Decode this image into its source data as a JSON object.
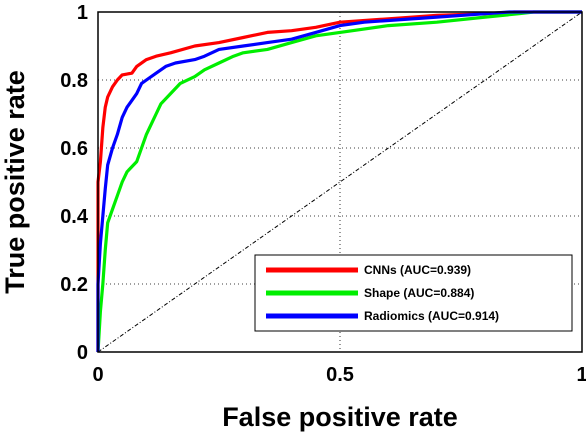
{
  "chart_data": {
    "type": "line",
    "xlabel": "False positive rate",
    "ylabel": "True positive rate",
    "xlim": [
      0,
      1
    ],
    "ylim": [
      0,
      1
    ],
    "grid": true,
    "grid_style": "dotted",
    "legend_position": "bottom-right",
    "x_ticks": [
      {
        "value": 0,
        "label": "0"
      },
      {
        "value": 0.5,
        "label": "0.5"
      },
      {
        "value": 1,
        "label": "1"
      }
    ],
    "y_ticks": [
      {
        "value": 0,
        "label": "0"
      },
      {
        "value": 0.2,
        "label": "0.2"
      },
      {
        "value": 0.4,
        "label": "0.4"
      },
      {
        "value": 0.6,
        "label": "0.6"
      },
      {
        "value": 0.8,
        "label": "0.8"
      },
      {
        "value": 1,
        "label": "1"
      }
    ],
    "series": [
      {
        "name": "CNNs (AUC=0.939)",
        "color": "#ff0000",
        "points": [
          [
            0,
            0
          ],
          [
            0,
            0.5
          ],
          [
            0.005,
            0.56
          ],
          [
            0.01,
            0.66
          ],
          [
            0.015,
            0.72
          ],
          [
            0.02,
            0.75
          ],
          [
            0.03,
            0.78
          ],
          [
            0.04,
            0.8
          ],
          [
            0.05,
            0.815
          ],
          [
            0.07,
            0.82
          ],
          [
            0.08,
            0.84
          ],
          [
            0.1,
            0.86
          ],
          [
            0.12,
            0.87
          ],
          [
            0.15,
            0.88
          ],
          [
            0.2,
            0.9
          ],
          [
            0.25,
            0.91
          ],
          [
            0.3,
            0.925
          ],
          [
            0.35,
            0.94
          ],
          [
            0.4,
            0.945
          ],
          [
            0.45,
            0.955
          ],
          [
            0.5,
            0.97
          ],
          [
            0.6,
            0.98
          ],
          [
            0.7,
            0.99
          ],
          [
            0.8,
            0.995
          ],
          [
            0.86,
            1.0
          ],
          [
            1,
            1
          ]
        ]
      },
      {
        "name": "Shape (AUC=0.884)",
        "color": "#00ee00",
        "points": [
          [
            0,
            0
          ],
          [
            0.005,
            0.12
          ],
          [
            0.01,
            0.2
          ],
          [
            0.015,
            0.3
          ],
          [
            0.02,
            0.38
          ],
          [
            0.03,
            0.42
          ],
          [
            0.04,
            0.46
          ],
          [
            0.05,
            0.5
          ],
          [
            0.06,
            0.53
          ],
          [
            0.08,
            0.56
          ],
          [
            0.09,
            0.6
          ],
          [
            0.1,
            0.64
          ],
          [
            0.11,
            0.67
          ],
          [
            0.12,
            0.7
          ],
          [
            0.13,
            0.73
          ],
          [
            0.15,
            0.76
          ],
          [
            0.17,
            0.79
          ],
          [
            0.2,
            0.81
          ],
          [
            0.22,
            0.83
          ],
          [
            0.25,
            0.85
          ],
          [
            0.28,
            0.87
          ],
          [
            0.3,
            0.88
          ],
          [
            0.35,
            0.89
          ],
          [
            0.4,
            0.91
          ],
          [
            0.45,
            0.93
          ],
          [
            0.5,
            0.94
          ],
          [
            0.6,
            0.96
          ],
          [
            0.7,
            0.97
          ],
          [
            0.8,
            0.985
          ],
          [
            0.87,
            0.995
          ],
          [
            0.9,
            1.0
          ],
          [
            1,
            1
          ]
        ]
      },
      {
        "name": "Radiomics (AUC=0.914)",
        "color": "#0000ff",
        "points": [
          [
            0,
            0
          ],
          [
            0,
            0.2
          ],
          [
            0.005,
            0.32
          ],
          [
            0.01,
            0.4
          ],
          [
            0.015,
            0.48
          ],
          [
            0.02,
            0.55
          ],
          [
            0.03,
            0.6
          ],
          [
            0.04,
            0.64
          ],
          [
            0.05,
            0.69
          ],
          [
            0.06,
            0.72
          ],
          [
            0.07,
            0.74
          ],
          [
            0.08,
            0.76
          ],
          [
            0.09,
            0.79
          ],
          [
            0.1,
            0.8
          ],
          [
            0.12,
            0.82
          ],
          [
            0.14,
            0.84
          ],
          [
            0.16,
            0.85
          ],
          [
            0.2,
            0.86
          ],
          [
            0.22,
            0.87
          ],
          [
            0.25,
            0.89
          ],
          [
            0.3,
            0.9
          ],
          [
            0.35,
            0.91
          ],
          [
            0.4,
            0.92
          ],
          [
            0.45,
            0.94
          ],
          [
            0.5,
            0.96
          ],
          [
            0.55,
            0.97
          ],
          [
            0.6,
            0.975
          ],
          [
            0.7,
            0.985
          ],
          [
            0.8,
            0.995
          ],
          [
            0.85,
            1.0
          ],
          [
            1,
            1
          ]
        ]
      }
    ],
    "reference_line": {
      "points": [
        [
          0,
          0
        ],
        [
          1,
          1
        ]
      ],
      "color": "#000000",
      "style": "dash-dot"
    }
  }
}
